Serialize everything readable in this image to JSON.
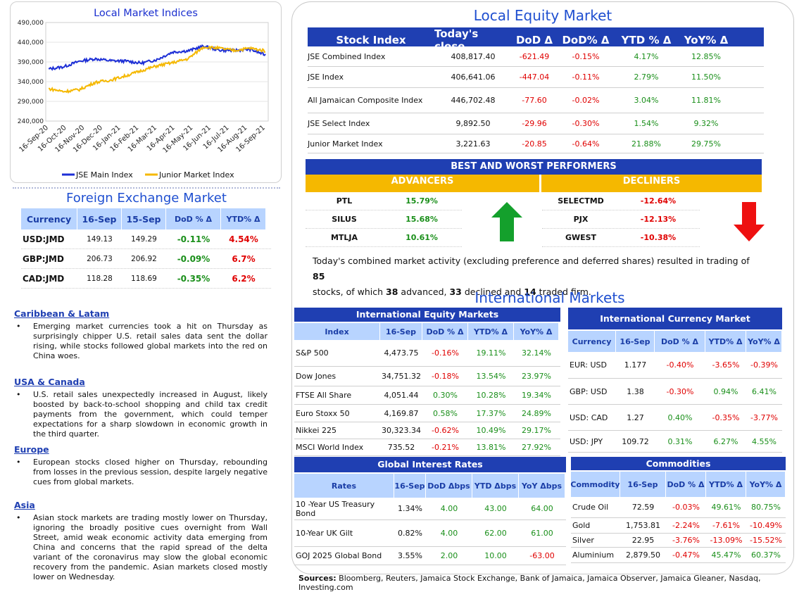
{
  "local_indices": {
    "title": "Local Market Indices",
    "chart_data": {
      "type": "line",
      "title": "Local Market Indices",
      "yticks": [
        "490,000",
        "440,000",
        "390,000",
        "340,000",
        "290,000",
        "240,000"
      ],
      "ylim": [
        240000,
        490000
      ],
      "xticks": [
        "16-Sep-20",
        "16-Oct-20",
        "16-Nov-20",
        "16-Dec-20",
        "16-Jan-21",
        "16-Feb-21",
        "16-Mar-21",
        "16-Apr-21",
        "16-May-21",
        "16-Jun-21",
        "16-Jul-21",
        "16-Aug-21",
        "16-Sep-21"
      ],
      "series": [
        {
          "name": "JSE Main Index",
          "color": "#1d2fd6",
          "values": [
            372000,
            378000,
            392000,
            398000,
            393000,
            392000,
            387000,
            396000,
            415000,
            418000,
            430000,
            420000,
            419000,
            422000,
            408000
          ]
        },
        {
          "name": "Junior Market Index",
          "color": "#f5b800",
          "values": [
            322000,
            315000,
            320000,
            338000,
            344000,
            355000,
            368000,
            380000,
            388000,
            398000,
            428000,
            425000,
            419000,
            425000,
            418000
          ]
        }
      ],
      "legend": "bottom"
    }
  },
  "fx": {
    "title": "Foreign Exchange Market",
    "headers": [
      "Currency",
      "16-Sep",
      "15-Sep",
      "DoD % Δ",
      "YTD% Δ"
    ],
    "rows": [
      {
        "currency": "USD:JMD",
        "d1": "149.13",
        "d2": "149.29",
        "dod": "-0.11%",
        "ytd": "4.54%"
      },
      {
        "currency": "GBP:JMD",
        "d1": "206.73",
        "d2": "206.92",
        "dod": "-0.09%",
        "ytd": "6.7%"
      },
      {
        "currency": "CAD:JMD",
        "d1": "118.28",
        "d2": "118.69",
        "dod": "-0.35%",
        "ytd": "6.2%"
      }
    ]
  },
  "news": [
    {
      "region": "Caribbean & Latam",
      "text": "Emerging market currencies took a hit on Thursday as surprisingly chipper U.S. retail sales data sent the dollar rising, while stocks followed global markets into the red on China woes."
    },
    {
      "region": "USA & Canada",
      "text": "U.S. retail sales unexpectedly increased in August, likely boosted by back-to-school shopping and child tax credit payments from the government, which could temper expectations for a sharp slowdown in economic growth in the third quarter."
    },
    {
      "region": "Europe",
      "text": "European stocks closed higher on Thursday, rebounding from losses in the previous session, despite largely negative cues from global markets."
    },
    {
      "region": "Asia",
      "text": "Asian stock markets are trading mostly lower on Thursday, ignoring the broadly positive cues overnight from Wall Street, amid weak economic activity data emerging from China and concerns that the rapid spread of the delta variant of the coronavirus may slow the global economic recovery from the pandemic. Asian markets closed mostly lower on Wednesday."
    }
  ],
  "local_equity": {
    "title": "Local Equity Market",
    "headers": [
      "Stock Index",
      "Today's close",
      "DoD  Δ",
      "DoD% Δ",
      "YTD % Δ",
      "YoY% Δ"
    ],
    "rows": [
      {
        "name": "JSE Combined Index",
        "close": "408,817.40",
        "dod": "-621.49",
        "dodp": "-0.15%",
        "ytd": "4.17%",
        "yoy": "12.85%"
      },
      {
        "name": "JSE Index",
        "close": "406,641.06",
        "dod": "-447.04",
        "dodp": "-0.11%",
        "ytd": "2.79%",
        "yoy": "11.50%"
      },
      {
        "name": "All Jamaican Composite Index",
        "close": "446,702.48",
        "dod": "-77.60",
        "dodp": "-0.02%",
        "ytd": "3.04%",
        "yoy": "11.81%"
      },
      {
        "name": "JSE Select Index",
        "close": "9,892.50",
        "dod": "-29.96",
        "dodp": "-0.30%",
        "ytd": "1.54%",
        "yoy": "9.32%"
      },
      {
        "name": "Junior Market Index",
        "close": "3,221.63",
        "dod": "-20.85",
        "dodp": "-0.64%",
        "ytd": "21.88%",
        "yoy": "29.75%"
      }
    ]
  },
  "performers": {
    "title": "BEST AND WORST PERFORMERS",
    "advancers_label": "ADVANCERS",
    "decliners_label": "DECLINERS",
    "advancers": [
      {
        "sym": "PTL",
        "pct": "15.79%"
      },
      {
        "sym": "SILUS",
        "pct": "15.68%"
      },
      {
        "sym": "MTLJA",
        "pct": "10.61%"
      }
    ],
    "decliners": [
      {
        "sym": "SELECTMD",
        "pct": "-12.64%"
      },
      {
        "sym": "PJX",
        "pct": "-12.13%"
      },
      {
        "sym": "GWEST",
        "pct": "-10.38%"
      }
    ],
    "summary_1": "Today's combined market activity (excluding preference and deferred shares) resulted in trading of ",
    "count_total": "85",
    "summary_2": "stocks, of which ",
    "count_adv": "38",
    "summary_3": " advanced, ",
    "count_dec": "33",
    "summary_4": " declined and ",
    "count_firm": "14",
    "summary_5": " traded firm."
  },
  "international": {
    "title": "International Markets",
    "equity": {
      "title": "International Equity Markets",
      "headers": [
        "Index",
        "16-Sep",
        "DoD % Δ",
        "YTD% Δ",
        "YoY% Δ"
      ],
      "rows": [
        {
          "name": "S&P 500",
          "v": "4,473.75",
          "dod": "-0.16%",
          "ytd": "19.11%",
          "yoy": "32.14%"
        },
        {
          "name": "Dow Jones",
          "v": "34,751.32",
          "dod": "-0.18%",
          "ytd": "13.54%",
          "yoy": "23.97%"
        },
        {
          "name": "FTSE All Share",
          "v": "4,051.44",
          "dod": "0.30%",
          "ytd": "10.28%",
          "yoy": "19.34%"
        },
        {
          "name": "Euro Stoxx 50",
          "v": "4,169.87",
          "dod": "0.58%",
          "ytd": "17.37%",
          "yoy": "24.89%"
        },
        {
          "name": "Nikkei 225",
          "v": "30,323.34",
          "dod": "-0.62%",
          "ytd": "10.49%",
          "yoy": "29.17%"
        },
        {
          "name": "MSCI World Index",
          "v": "735.52",
          "dod": "-0.21%",
          "ytd": "13.81%",
          "yoy": "27.92%"
        }
      ]
    },
    "currency": {
      "title": "International Currency Market",
      "headers": [
        "Currency",
        "16-Sep",
        "DoD % Δ",
        "YTD% Δ",
        "YoY% Δ"
      ],
      "rows": [
        {
          "name": "EUR: USD",
          "v": "1.177",
          "dod": "-0.40%",
          "ytd": "-3.65%",
          "yoy": "-0.39%"
        },
        {
          "name": "GBP: USD",
          "v": "1.38",
          "dod": "-0.30%",
          "ytd": "0.94%",
          "yoy": "6.41%"
        },
        {
          "name": "USD: CAD",
          "v": "1.27",
          "dod": "0.40%",
          "ytd": "-0.35%",
          "yoy": "-3.77%"
        },
        {
          "name": "USD: JPY",
          "v": "109.72",
          "dod": "0.31%",
          "ytd": "6.27%",
          "yoy": "4.55%"
        }
      ]
    },
    "rates": {
      "title": "Global Interest Rates",
      "headers": [
        "Rates",
        "16-Sep",
        "DoD Δbps",
        "YTD Δbps",
        "YoY Δbps"
      ],
      "rows": [
        {
          "name": "10 -Year US Treasury Bond",
          "v": "1.34%",
          "dod": "4.00",
          "ytd": "43.00",
          "yoy": "64.00"
        },
        {
          "name": "10-Year UK Gilt",
          "v": "0.82%",
          "dod": "4.00",
          "ytd": "62.00",
          "yoy": "61.00"
        },
        {
          "name": "GOJ 2025 Global Bond",
          "v": "3.55%",
          "dod": "2.00",
          "ytd": "10.00",
          "yoy": "-63.00"
        }
      ]
    },
    "commodities": {
      "title": "Commodities",
      "headers": [
        "Commodity",
        "16-Sep",
        "DoD % Δ",
        "YTD% Δ",
        "YoY% Δ"
      ],
      "rows": [
        {
          "name": "Crude Oil",
          "v": "72.59",
          "dod": "-0.03%",
          "ytd": "49.61%",
          "yoy": "80.75%"
        },
        {
          "name": "Gold",
          "v": "1,753.81",
          "dod": "-2.24%",
          "ytd": "-7.61%",
          "yoy": "-10.49%"
        },
        {
          "name": "Silver",
          "v": "22.95",
          "dod": "-3.76%",
          "ytd": "-13.09%",
          "yoy": "-15.52%"
        },
        {
          "name": "Aluminium",
          "v": "2,879.50",
          "dod": "-0.47%",
          "ytd": "45.47%",
          "yoy": "60.37%"
        }
      ]
    }
  },
  "sources": {
    "label": "Sources:",
    "text": " Bloomberg, Reuters, Jamaica Stock Exchange, Bank of Jamaica, Jamaica Observer, Jamaica Gleaner, Nasdaq, Investing.com"
  }
}
